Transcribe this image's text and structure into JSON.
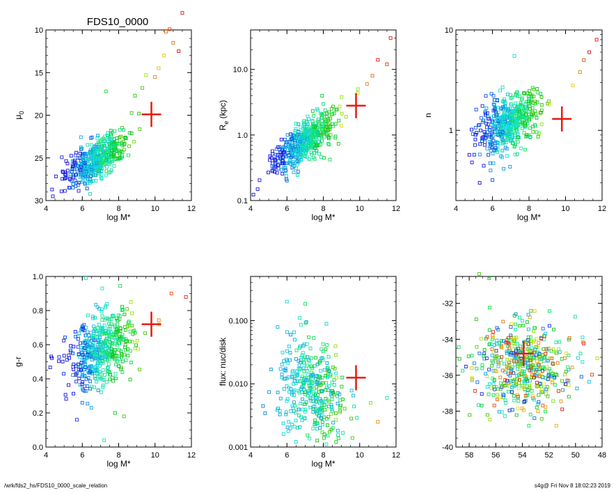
{
  "title": "FDS10_0000",
  "footer_left": "/wrk/fds2_hs/FDS10_0000_scale_relation",
  "footer_right": "s4g@  Fri Nov  8 18:02:23 2019",
  "colors": {
    "marker_big": "#e8190f",
    "frame": "#000000"
  },
  "chart_data": [
    {
      "type": "scatter",
      "ylabel": "μ0",
      "xlabel": "log M*",
      "xlim": [
        4,
        12
      ],
      "ylim": [
        30,
        10
      ],
      "yscale": "linear",
      "xticks": [
        "4",
        "6",
        "8",
        "10",
        "12"
      ],
      "yticks": [
        "10",
        "15",
        "20",
        "25",
        "30"
      ],
      "highlight": {
        "x": 9.8,
        "y": 19.9
      },
      "cloud": {
        "x_mean": 6.8,
        "x_sd": 0.85,
        "y_of_x": {
          "intercept": 34.3,
          "slope": -1.35
        },
        "y_sd": 1.1,
        "n": 520
      },
      "outliers": [
        [
          10.8,
          9.9
        ],
        [
          11.0,
          11.5
        ],
        [
          10.5,
          13.0
        ],
        [
          11.5,
          8.0
        ],
        [
          10.2,
          14.5
        ],
        [
          9.5,
          15.3
        ],
        [
          11.3,
          12.5
        ],
        [
          9.3,
          16.8
        ],
        [
          8.9,
          17.7
        ],
        [
          10.0,
          15.5
        ],
        [
          7.3,
          17.2
        ],
        [
          10.6,
          10.2
        ]
      ]
    },
    {
      "type": "scatter",
      "ylabel": "Re (kpc)",
      "xlabel": "log M*",
      "xlim": [
        4,
        12
      ],
      "ylim": [
        0.1,
        40
      ],
      "yscale": "log",
      "xticks": [
        "4",
        "6",
        "8",
        "10",
        "12"
      ],
      "yticks": [
        "0.1",
        "1.0",
        "10.0"
      ],
      "highlight": {
        "x": 9.8,
        "y": 2.8
      },
      "cloud": {
        "x_mean": 6.9,
        "x_sd": 0.85,
        "y_of_x": {
          "intercept": -1.39,
          "slope": 0.185
        },
        "y_sd": 0.16,
        "n": 520
      },
      "outliers": [
        [
          11.7,
          30.0
        ],
        [
          11.0,
          14.0
        ],
        [
          10.7,
          8.0
        ],
        [
          11.5,
          12.0
        ],
        [
          10.4,
          6.0
        ],
        [
          9.9,
          5.0
        ],
        [
          6.0,
          0.2
        ],
        [
          5.5,
          0.35
        ]
      ]
    },
    {
      "type": "scatter",
      "ylabel": "n",
      "xlabel": "log M*",
      "xlim": [
        4,
        12
      ],
      "ylim": [
        0.2,
        10
      ],
      "yscale": "log",
      "xticks": [
        "4",
        "6",
        "8",
        "10",
        "12"
      ],
      "yticks": [
        "1",
        "10"
      ],
      "highlight": {
        "x": 9.8,
        "y": 1.3
      },
      "cloud": {
        "x_mean": 6.9,
        "x_sd": 0.85,
        "y_of_x": {
          "intercept": -0.48,
          "slope": 0.08
        },
        "y_sd": 0.13,
        "n": 520
      },
      "outliers": [
        [
          7.2,
          5.5
        ],
        [
          11.7,
          8.0
        ],
        [
          11.3,
          6.0
        ],
        [
          11.0,
          5.0
        ],
        [
          10.8,
          3.8
        ],
        [
          10.4,
          2.8
        ],
        [
          5.3,
          0.3
        ],
        [
          6.0,
          0.32
        ]
      ]
    },
    {
      "type": "scatter",
      "ylabel": "g-r",
      "xlabel": "log M*",
      "xlim": [
        4,
        12
      ],
      "ylim": [
        0.0,
        1.0
      ],
      "yscale": "linear",
      "xticks": [
        "4",
        "6",
        "8",
        "10",
        "12"
      ],
      "yticks": [
        "0.0",
        "0.2",
        "0.4",
        "0.6",
        "0.8",
        "1.0"
      ],
      "highlight": {
        "x": 9.8,
        "y": 0.72
      },
      "cloud": {
        "x_mean": 7.0,
        "x_sd": 0.9,
        "y_of_x": {
          "intercept": 0.25,
          "slope": 0.045
        },
        "y_sd": 0.1,
        "n": 520
      },
      "outliers": [
        [
          6.2,
          0.99
        ],
        [
          7.1,
          0.93
        ],
        [
          11.7,
          0.88
        ],
        [
          10.9,
          0.9
        ],
        [
          6.5,
          0.23
        ],
        [
          6.0,
          0.26
        ],
        [
          7.2,
          0.04
        ],
        [
          7.8,
          0.2
        ],
        [
          8.3,
          0.18
        ],
        [
          5.7,
          0.16
        ]
      ]
    },
    {
      "type": "scatter",
      "ylabel": "flux: nuc/disk",
      "xlabel": "log M*",
      "xlim": [
        4,
        12
      ],
      "ylim": [
        0.001,
        0.5
      ],
      "yscale": "log",
      "xticks": [
        "4",
        "6",
        "8",
        "10",
        "12"
      ],
      "yticks": [
        "0.001",
        "0.010",
        "0.100"
      ],
      "highlight": {
        "x": 9.8,
        "y": 0.0125
      },
      "cloud": {
        "x_mean": 7.4,
        "x_sd": 0.95,
        "y_of_x": {
          "intercept": -1.7,
          "slope": -0.06
        },
        "y_sd": 0.42,
        "n": 380
      },
      "outliers": [
        [
          6.0,
          0.2
        ],
        [
          6.7,
          0.11
        ],
        [
          11.0,
          0.0025
        ],
        [
          10.6,
          0.005
        ],
        [
          11.5,
          0.006
        ],
        [
          8.7,
          0.0012
        ]
      ]
    },
    {
      "type": "scatter",
      "ylabel": "",
      "xlabel": "",
      "xlim": [
        59,
        48
      ],
      "ylim": [
        -40,
        -30.5
      ],
      "yscale": "linear",
      "xticks": [
        "58",
        "56",
        "54",
        "52",
        "50",
        "48"
      ],
      "yticks": [
        "-32",
        "-34",
        "-36",
        "-38",
        "-40"
      ],
      "highlight": {
        "x": 53.9,
        "y": -34.8
      },
      "cloud": {
        "x_mean": 53.8,
        "x_sd": 1.8,
        "y_of_x": {
          "intercept": -35.5,
          "slope": 0.0
        },
        "y_sd": 1.2,
        "n": 520
      },
      "outliers": [
        [
          56.5,
          -30.6
        ],
        [
          50.5,
          -37.2
        ],
        [
          51.0,
          -37.9
        ],
        [
          57.8,
          -35.6
        ]
      ]
    }
  ]
}
